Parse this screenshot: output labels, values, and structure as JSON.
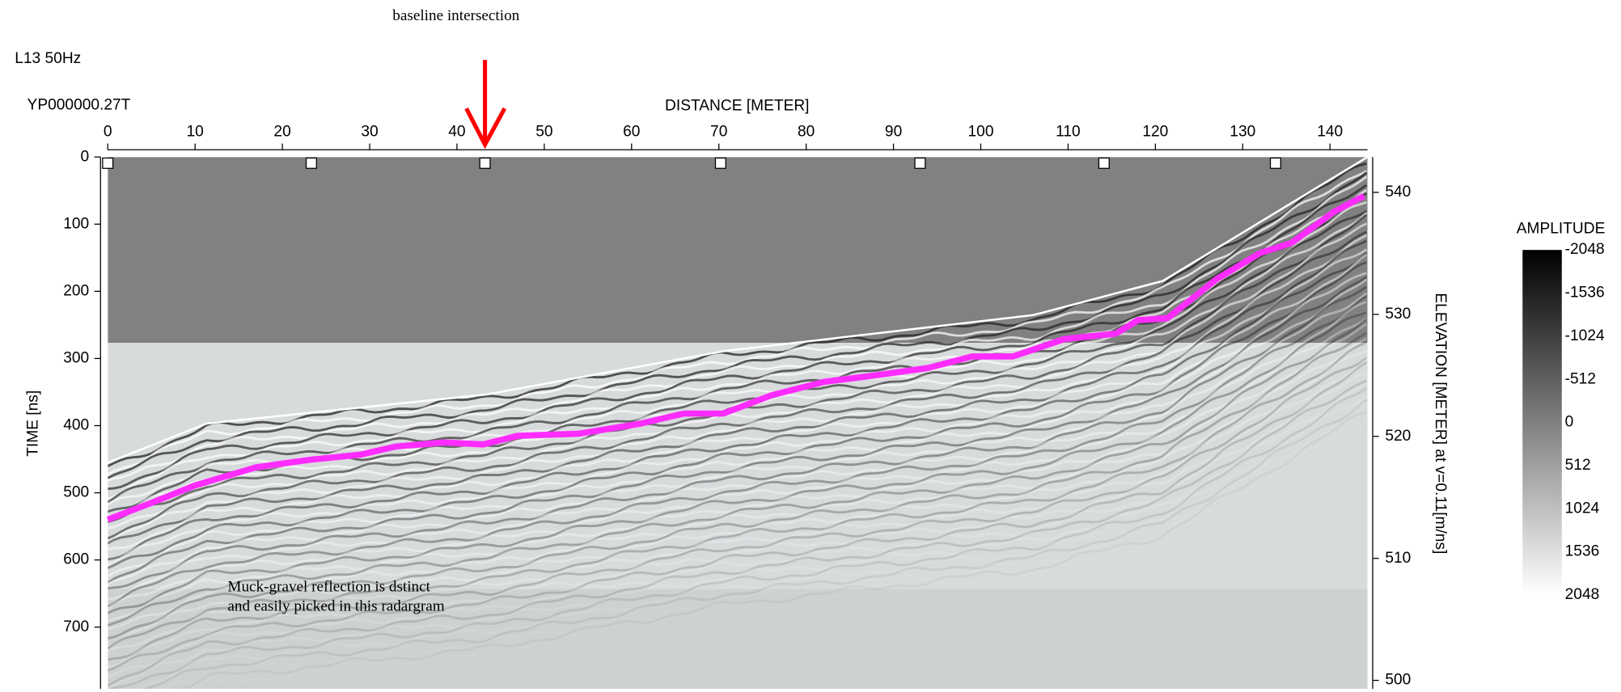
{
  "chart_data": {
    "type": "radargram",
    "title": "L13 50Hz",
    "subtitle": "YP000000.27T",
    "annotations": [
      "baseline intersection",
      "Muck-gravel reflection is dstinct",
      "and easily picked in this radargram"
    ],
    "x_label": "DISTANCE [METER]",
    "y_label": "TIME [ns]",
    "y2_label": "ELEVATION [METER] at v=0.11[m/ns]",
    "xlim": [
      0,
      144.3
    ],
    "xticks": [
      0,
      10,
      20,
      30,
      40,
      50,
      60,
      70,
      80,
      90,
      100,
      110,
      120,
      130,
      140
    ],
    "ylim": [
      792,
      0
    ],
    "yticks": [
      0,
      100,
      200,
      300,
      400,
      500,
      600,
      700
    ],
    "y2lim": [
      499.3,
      542.9
    ],
    "y2ticks": [
      500,
      510,
      520,
      530,
      540
    ],
    "series": [
      {
        "color": "#ff2cff",
        "x": [
          0,
          5,
          10,
          17,
          23,
          29,
          33,
          38.6,
          43,
          47,
          54,
          61,
          66,
          70.5,
          76,
          82,
          88,
          94,
          99,
          103.7,
          109.6,
          115.5,
          118,
          121.4,
          127,
          132,
          135.6,
          140.4,
          143.9
        ],
        "values": [
          540,
          515,
          489,
          462,
          451,
          443,
          431,
          425,
          428,
          415,
          412,
          397,
          382,
          382,
          355,
          335,
          325,
          314,
          297,
          297,
          271,
          263,
          243,
          240,
          182,
          143,
          128,
          82,
          58
        ]
      }
    ],
    "colorbar": {
      "title": "AMPLITUDE",
      "ticks": [
        -2048,
        -1536,
        -1024,
        -512,
        0,
        512,
        1024,
        1536,
        2048
      ]
    }
  }
}
